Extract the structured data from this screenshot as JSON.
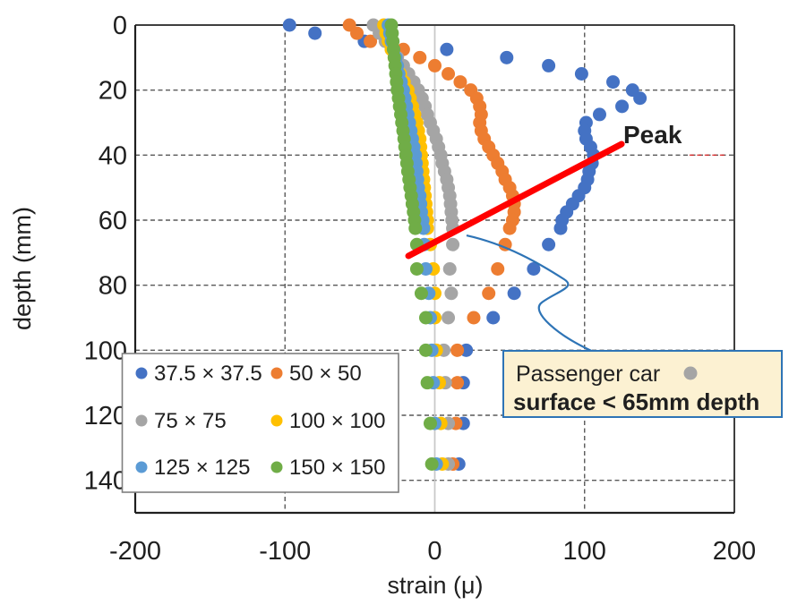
{
  "chart_data": {
    "type": "scatter",
    "title": "",
    "xlabel": "strain (μ)",
    "ylabel": "depth (mm)",
    "xlim": [
      -200,
      200
    ],
    "ylim": [
      0,
      150
    ],
    "xticks": [
      -200,
      -100,
      0,
      100,
      200
    ],
    "yticks": [
      0,
      20,
      40,
      60,
      80,
      100,
      120,
      140
    ],
    "grid": "dashed",
    "legend_position": "lower-left",
    "depths_dense": [
      0,
      2.5,
      5,
      7.5,
      10,
      12.5,
      15,
      17.5,
      20,
      22.5,
      25,
      27.5,
      30,
      32.5,
      35,
      37.5,
      40,
      42.5,
      45,
      47.5,
      50,
      52.5,
      55,
      57.5,
      60,
      62.5
    ],
    "depths_sparse": [
      67.5,
      75,
      82.5,
      90,
      100,
      110,
      122.5,
      135
    ],
    "series": [
      {
        "name": "37.5 × 37.5",
        "color": "#4472C4",
        "dense": [
          -97,
          -80,
          -47,
          8,
          48,
          76,
          98,
          119,
          132,
          137,
          125,
          110,
          101,
          100,
          101,
          104,
          106,
          105,
          103,
          102,
          100,
          96,
          92,
          88,
          85,
          84
        ],
        "sparse": [
          76,
          66,
          53,
          39,
          21,
          19,
          19,
          16
        ]
      },
      {
        "name": "50 × 50",
        "color": "#ED7D31",
        "dense": [
          -57,
          -52,
          -43,
          -21,
          -10,
          0,
          9,
          17,
          24,
          28,
          30,
          31,
          30,
          31,
          33,
          36,
          39,
          42,
          45,
          47,
          50,
          52,
          53,
          53,
          52,
          50
        ],
        "sparse": [
          47,
          42,
          36,
          26,
          15,
          15,
          14,
          12
        ]
      },
      {
        "name": "75 × 75",
        "color": "#A5A5A5",
        "dense": [
          -41,
          -37,
          -33,
          -29,
          -25,
          -21,
          -17.5,
          -14,
          -11,
          -8.5,
          -6.5,
          -5,
          -3,
          -1,
          1,
          2.5,
          4,
          5,
          6.5,
          8,
          9,
          10,
          10.5,
          11,
          11.5,
          12
        ],
        "sparse": [
          12,
          10,
          11,
          9,
          6,
          7,
          9,
          9
        ]
      },
      {
        "name": "100 × 100",
        "color": "#FFC000",
        "dense": [
          -34,
          -32.5,
          -31,
          -29,
          -27,
          -25,
          -23,
          -20.5,
          -18,
          -16.5,
          -15,
          -13.5,
          -12,
          -11,
          -10,
          -9.5,
          -9,
          -8.5,
          -8,
          -7.5,
          -7,
          -6.5,
          -6,
          -5.5,
          -5,
          -5
        ],
        "sparse": [
          -3,
          -1,
          0,
          0,
          1,
          3,
          4,
          5
        ]
      },
      {
        "name": "125 × 125",
        "color": "#5B9BD5",
        "dense": [
          -31,
          -30,
          -29,
          -27.5,
          -26,
          -25,
          -24,
          -22.5,
          -21,
          -20,
          -19,
          -18,
          -17,
          -16,
          -15,
          -14,
          -13,
          -12.5,
          -12,
          -11.5,
          -11,
          -10,
          -9.5,
          -9,
          -8,
          -7.5
        ],
        "sparse": [
          -7,
          -6,
          -4,
          -3,
          -2,
          -1,
          0,
          1
        ]
      },
      {
        "name": "150 × 150",
        "color": "#70AD47",
        "dense": [
          -29,
          -28.5,
          -28,
          -27.5,
          -27,
          -26.5,
          -26,
          -25.5,
          -25,
          -24.2,
          -23.5,
          -22.7,
          -22,
          -21.2,
          -20.5,
          -19.9,
          -19.3,
          -18.6,
          -18,
          -17.2,
          -16.5,
          -15.7,
          -15,
          -14.2,
          -13.5,
          -13
        ],
        "sparse": [
          -12,
          -12,
          -9,
          -6,
          -6,
          -5,
          -3,
          -2
        ]
      }
    ],
    "annotations": {
      "peak": {
        "label": "Peak",
        "color": "#FF0000",
        "line_data": {
          "x1": -17.6,
          "depth1": 71.0,
          "x2": 124.7,
          "depth2": 36.6
        }
      },
      "callout": {
        "color": "#2E74B6",
        "anchors_data": [
          [
            21.2,
            64.7
          ],
          [
            86.4,
            78.2
          ],
          [
            71.5,
            85.3
          ],
          [
            106.1,
            100.5
          ]
        ]
      },
      "note_box": {
        "line1": "Passenger car",
        "line2": "surface < 65mm depth",
        "fill": "#FCF1D2",
        "border": "#2E74B6",
        "dot_color": "#A5A5A5"
      },
      "red_dash": {
        "x1": 170,
        "x2": 195,
        "depth": 40
      }
    }
  }
}
